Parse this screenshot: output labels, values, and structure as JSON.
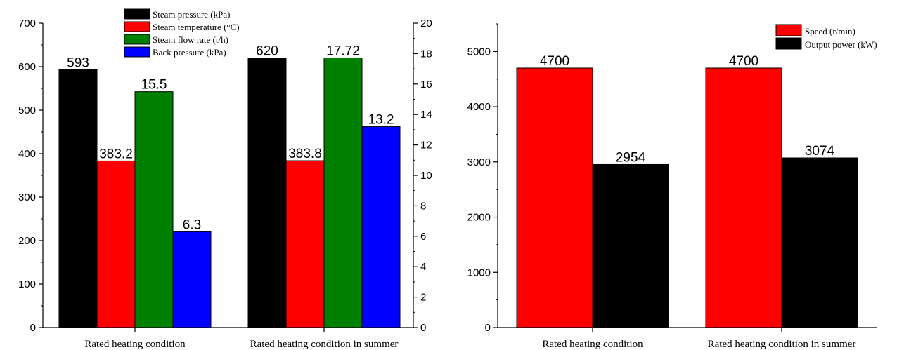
{
  "chart_data": [
    {
      "type": "bar",
      "title": "",
      "xlabel": "",
      "ylabel": "",
      "categories": [
        "Rated heating condition",
        "Rated heating condition in summer"
      ],
      "ylim": [
        0,
        700
      ],
      "y2lim": [
        0,
        20
      ],
      "yticks": [
        0,
        100,
        200,
        300,
        400,
        500,
        600,
        700
      ],
      "y2ticks": [
        0,
        2,
        4,
        6,
        8,
        10,
        12,
        14,
        16,
        18,
        20
      ],
      "legend_position": "top",
      "grid": false,
      "series": [
        {
          "name": "Steam pressure (kPa)",
          "axis": "left",
          "color": "#000000",
          "values": [
            593,
            620
          ],
          "labels": [
            "593",
            "620"
          ]
        },
        {
          "name": "Steam temperature (°C)",
          "axis": "left",
          "color": "#ff0000",
          "values": [
            383.2,
            383.8
          ],
          "labels": [
            "383.2",
            "383.8"
          ]
        },
        {
          "name": "Steam flow rate (t/h)",
          "axis": "right",
          "color": "#008000",
          "values": [
            15.5,
            17.72
          ],
          "labels": [
            "15.5",
            "17.72"
          ]
        },
        {
          "name": "Back pressure (kPa)",
          "axis": "right",
          "color": "#0000ff",
          "values": [
            6.3,
            13.2
          ],
          "labels": [
            "6.3",
            "13.2"
          ]
        }
      ]
    },
    {
      "type": "bar",
      "title": "",
      "xlabel": "",
      "ylabel": "",
      "categories": [
        "Rated heating condition",
        "Rated heating condition in summer"
      ],
      "ylim": [
        0,
        5500
      ],
      "yticks": [
        0,
        1000,
        2000,
        3000,
        4000,
        5000
      ],
      "legend_position": "top-right",
      "grid": false,
      "series": [
        {
          "name": "Speed (r/min)",
          "axis": "left",
          "color": "#ff0000",
          "values": [
            4700,
            4700
          ],
          "labels": [
            "4700",
            "4700"
          ]
        },
        {
          "name": "Output power (kW)",
          "axis": "left",
          "color": "#000000",
          "values": [
            2954,
            3074
          ],
          "labels": [
            "2954",
            "3074"
          ]
        }
      ]
    }
  ]
}
